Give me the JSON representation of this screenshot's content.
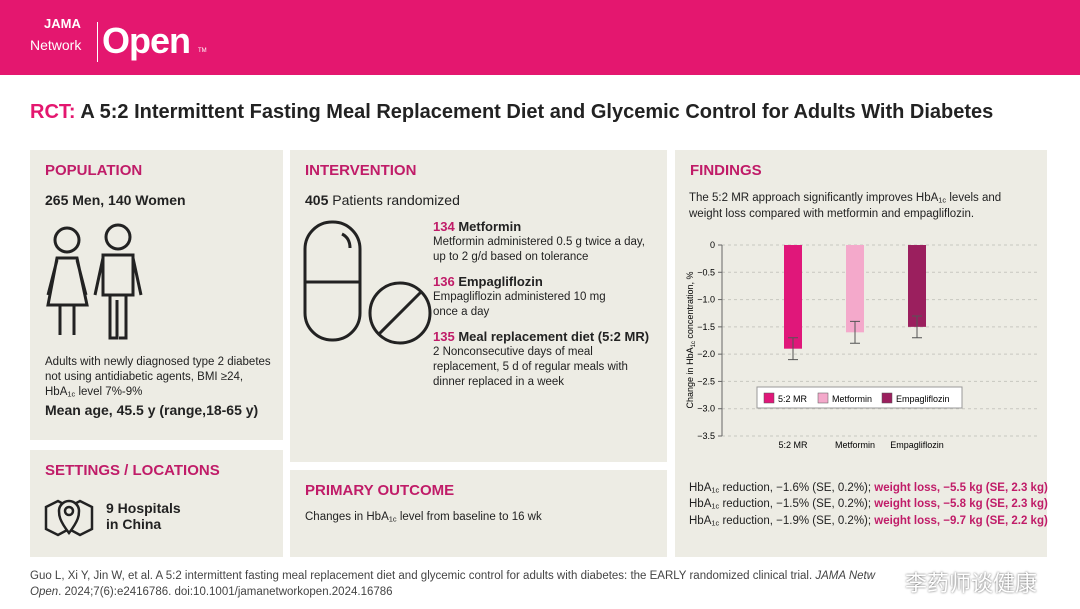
{
  "header": {
    "logo_top": "JAMA",
    "logo_bottom": "Network",
    "logo_main": "Open",
    "logo_tm": "TM"
  },
  "title": {
    "prefix": "RCT:",
    "text": " A 5:2 Intermittent Fasting Meal Replacement Diet and Glycemic Control for Adults With Diabetes"
  },
  "population": {
    "heading": "POPULATION",
    "counts": "265 Men, 140 Women",
    "criteria_lines": [
      "Adults with newly diagnosed type 2 diabetes",
      "not using antidiabetic agents, BMI ≥24,"
    ],
    "criteria_hba": [
      "HbA",
      "1c",
      " level 7%-9%"
    ],
    "age": "Mean age, 45.5 y (range,18-65 y)"
  },
  "settings": {
    "heading": "SETTINGS / LOCATIONS",
    "lines": [
      "9 Hospitals",
      "in China"
    ]
  },
  "intervention": {
    "heading": "INTERVENTION",
    "randomized_n": "405",
    "randomized_text": " Patients randomized",
    "arms": [
      {
        "n": "134",
        "name": " Metformin",
        "desc": [
          "Metformin administered 0.5 g twice a day,",
          "up to 2 g/d based on tolerance"
        ]
      },
      {
        "n": "136",
        "name": " Empagliflozin",
        "desc": [
          "Empagliflozin administered 10 mg",
          "once a day"
        ]
      },
      {
        "n": "135",
        "name": " Meal replacement diet (5:2 MR)",
        "desc": [
          "2 Nonconsecutive days of meal",
          "replacement, 5 d of regular meals with",
          "dinner replaced in a week"
        ]
      }
    ]
  },
  "primary_outcome": {
    "heading": "PRIMARY OUTCOME",
    "text": [
      "Changes in HbA",
      "1c",
      " level from baseline to 16 wk"
    ]
  },
  "findings": {
    "heading": "FINDINGS",
    "summary": [
      "The 5:2 MR approach significantly improves HbA",
      "1c",
      " levels and weight loss compared with metformin and empagliflozin."
    ],
    "results": [
      {
        "hba": [
          "HbA",
          "1c",
          " reduction, −1.6% (SE, 0.2%); "
        ],
        "weight": "weight loss, −5.5 kg (SE, 2.3 kg)"
      },
      {
        "hba": [
          "HbA",
          "1c",
          " reduction, −1.5% (SE, 0.2%); "
        ],
        "weight": "weight loss, −5.8 kg (SE, 2.3 kg)"
      },
      {
        "hba": [
          "HbA",
          "1c",
          " reduction, −1.9% (SE, 0.2%); "
        ],
        "weight": "weight loss, −9.7 kg (SE, 2.2 kg)"
      }
    ]
  },
  "citation": [
    "Guo L, Xi Y, Jin W, et al. A 5:2 intermittent fasting meal replacement diet and glycemic control for adults with diabetes: the EARLY randomized clinical trial. ",
    "JAMA Netw Open",
    ". 2024;7(6):e2416786. doi:10.1001/jamanetworkopen.2024.16786"
  ],
  "watermark": "李药师谈健康",
  "chart_data": {
    "type": "bar",
    "ylabel": [
      "Change in HbA",
      "1c",
      " concentration, %"
    ],
    "categories": [
      "5:2 MR",
      "Metformin",
      "Empagliflozin"
    ],
    "values": [
      -1.9,
      -1.6,
      -1.5
    ],
    "errors": [
      0.2,
      0.2,
      0.2
    ],
    "colors": [
      "#e0177a",
      "#f4a9cb",
      "#9b1f5e"
    ],
    "ylim": [
      -3.5,
      0
    ],
    "yticks": [
      0,
      {
        "value": -0.5,
        "label": "−0.5"
      },
      {
        "value": -1.0,
        "label": "−1.0"
      },
      {
        "value": -1.5,
        "label": "−1.5"
      },
      {
        "value": -2.0,
        "label": "−2.0"
      },
      {
        "value": -2.5,
        "label": "−2.5"
      },
      {
        "value": -3.0,
        "label": "−3.0"
      },
      {
        "value": -3.5,
        "label": "−3.5"
      }
    ],
    "grid": true,
    "legend": "bottom"
  }
}
